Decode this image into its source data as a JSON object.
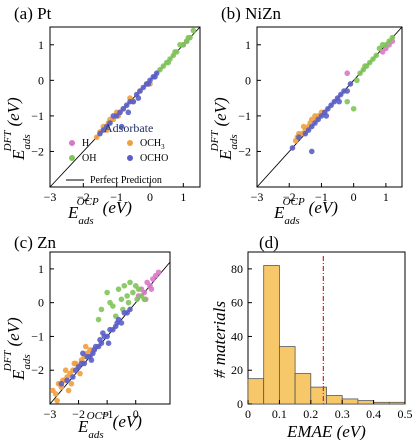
{
  "colors": {
    "H": "#d977c7",
    "OCH3": "#f0a03c",
    "OH": "#7fc45a",
    "OCHO": "#5a5ec8",
    "bar": "#f7c86a",
    "vline": "#e02020"
  },
  "chart_data": [
    {
      "type": "scatter",
      "title": "(a) Pt",
      "xlabel": "E_ads^OCP (eV)",
      "ylabel": "E_ads^DFT (eV)",
      "xlim": [
        -3,
        1.5
      ],
      "ylim": [
        -3,
        1.5
      ],
      "xticks": [
        -3,
        -2,
        -1,
        0,
        1
      ],
      "yticks": [
        -2,
        -1,
        0,
        1
      ],
      "show_xticklabels": true,
      "series": [
        {
          "name": "H",
          "x": [
            1.0,
            1.1
          ],
          "y": [
            1.0,
            1.1
          ]
        },
        {
          "name": "OCH3",
          "x": [
            -1.6,
            -1.4,
            -1.3,
            -1.2,
            -1.1,
            -1.0,
            -0.9,
            -0.8,
            -0.6,
            -0.5,
            -0.3,
            -0.1,
            0.0,
            -1.5,
            -1.25,
            -0.95
          ],
          "y": [
            -1.6,
            -1.3,
            -1.4,
            -1.1,
            -1.1,
            -0.9,
            -0.9,
            -0.8,
            -0.5,
            -0.6,
            -0.3,
            -0.1,
            -0.1,
            -1.45,
            -1.2,
            -1.0
          ]
        },
        {
          "name": "OH",
          "x": [
            0.4,
            0.5,
            0.6,
            0.7,
            0.8,
            0.9,
            1.0,
            1.1,
            1.2,
            1.3,
            0.3,
            0.55,
            0.75,
            1.15
          ],
          "y": [
            0.4,
            0.5,
            0.6,
            0.7,
            0.8,
            1.0,
            1.0,
            1.1,
            1.2,
            1.4,
            0.3,
            0.5,
            0.8,
            1.2
          ]
        },
        {
          "name": "OCHO",
          "x": [
            -1.5,
            -1.4,
            -1.3,
            -1.2,
            -1.1,
            -1.0,
            -0.9,
            -0.8,
            -0.7,
            -0.6,
            -0.5,
            -0.4,
            -0.3,
            -0.2,
            -0.1,
            0.0,
            0.1,
            0.2,
            -0.85,
            -0.65,
            -0.35,
            -0.05,
            0.15
          ],
          "y": [
            -1.5,
            -1.4,
            -1.3,
            -1.2,
            -1.0,
            -1.0,
            -0.9,
            -0.8,
            -0.7,
            -0.6,
            -0.6,
            -0.4,
            -0.3,
            -0.2,
            -0.1,
            0.0,
            0.1,
            0.2,
            -1.3,
            -0.9,
            -0.5,
            -0.1,
            0.1
          ]
        }
      ]
    },
    {
      "type": "scatter",
      "title": "(b) NiZn",
      "xlabel": "",
      "ylabel": "E_ads^DFT (eV)",
      "xlim": [
        -3,
        1.5
      ],
      "ylim": [
        -3,
        1.5
      ],
      "xticks": [
        -3,
        -2,
        -1,
        0,
        1
      ],
      "yticks": [
        -2,
        -1,
        0,
        1
      ],
      "show_xticklabels": true,
      "series": [
        {
          "name": "H",
          "x": [
            0.9,
            1.0,
            1.1,
            1.2,
            -0.2
          ],
          "y": [
            0.8,
            0.9,
            1.0,
            1.1,
            0.2
          ]
        },
        {
          "name": "OCH3",
          "x": [
            -1.8,
            -1.7,
            -1.6,
            -1.5,
            -1.4,
            -1.3,
            -1.2,
            -1.1,
            -1.0,
            -0.9,
            -1.75,
            -1.55,
            -1.35,
            -1.15
          ],
          "y": [
            -1.7,
            -1.5,
            -1.5,
            -1.4,
            -1.3,
            -1.1,
            -1.0,
            -1.0,
            -0.9,
            -0.9,
            -1.6,
            -1.3,
            -1.2,
            -1.1
          ]
        },
        {
          "name": "OH",
          "x": [
            0.2,
            0.3,
            0.4,
            0.5,
            0.6,
            0.7,
            0.8,
            0.9,
            1.0,
            1.1,
            1.2,
            0.0,
            0.1,
            -0.2,
            0.35
          ],
          "y": [
            0.2,
            0.3,
            0.4,
            0.5,
            0.6,
            0.7,
            0.9,
            1.0,
            1.0,
            1.1,
            1.2,
            -0.8,
            0.0,
            -0.6,
            0.4
          ]
        },
        {
          "name": "OCHO",
          "x": [
            -1.9,
            -1.7,
            -1.5,
            -1.4,
            -1.3,
            -1.2,
            -1.1,
            -1.0,
            -0.9,
            -0.8,
            -0.7,
            -0.6,
            -0.5,
            -0.4,
            -0.3,
            -0.2,
            -0.1,
            -1.3,
            -0.85,
            -0.45
          ],
          "y": [
            -1.9,
            -1.6,
            -1.5,
            -1.4,
            -1.3,
            -1.2,
            -1.1,
            -1.0,
            -0.9,
            -0.8,
            -0.7,
            -0.6,
            -0.5,
            -0.4,
            -0.3,
            -0.3,
            -0.1,
            -2.0,
            -1.0,
            -0.6
          ]
        }
      ]
    },
    {
      "type": "scatter",
      "title": "(c) Zn",
      "xlabel": "E_ads^OCP (eV)",
      "ylabel": "E_ads^DFT (eV)",
      "xlim": [
        -3,
        1.2
      ],
      "ylim": [
        -3,
        1.5
      ],
      "xticks": [
        -3,
        -2,
        -1,
        0
      ],
      "yticks": [
        -2,
        -1,
        0,
        1
      ],
      "show_xticklabels": true,
      "series": [
        {
          "name": "H",
          "x": [
            0.1,
            0.2,
            0.3,
            0.4,
            0.5,
            0.6,
            0.7,
            0.8,
            0.35,
            0.55
          ],
          "y": [
            0.2,
            0.4,
            0.3,
            0.6,
            0.5,
            0.7,
            0.8,
            0.9,
            0.1,
            0.4
          ]
        },
        {
          "name": "OCH3",
          "x": [
            -2.9,
            -2.8,
            -2.7,
            -2.6,
            -2.5,
            -2.4,
            -2.3,
            -2.2,
            -2.1,
            -2.0,
            -1.9,
            -1.8,
            -1.7,
            -1.6,
            -1.5,
            -2.75,
            -2.55,
            -2.35,
            -2.15,
            -1.95,
            -1.75,
            -2.45,
            -2.25
          ],
          "y": [
            -2.6,
            -2.7,
            -2.4,
            -2.5,
            -2.3,
            -2.2,
            -2.1,
            -2.0,
            -1.8,
            -1.9,
            -1.7,
            -1.6,
            -1.5,
            -1.4,
            -1.4,
            -2.9,
            -2.3,
            -2.6,
            -1.8,
            -2.1,
            -1.3,
            -2.0,
            -2.4
          ]
        },
        {
          "name": "OH",
          "x": [
            -1.2,
            -1.0,
            -0.8,
            -0.6,
            -0.5,
            -0.4,
            -0.3,
            -0.2,
            -0.1,
            0.0,
            0.1,
            0.2,
            0.3,
            -0.9,
            -0.7,
            -0.45,
            -0.25,
            0.05,
            -1.3
          ],
          "y": [
            -0.2,
            0.3,
            -0.1,
            0.4,
            0.1,
            0.5,
            0.2,
            0.6,
            0.3,
            0.5,
            0.4,
            0.2,
            0.1,
            0.0,
            -0.4,
            -0.2,
            0.0,
            0.1,
            -0.5
          ]
        },
        {
          "name": "OCHO",
          "x": [
            -2.6,
            -2.4,
            -2.2,
            -2.0,
            -1.9,
            -1.8,
            -1.7,
            -1.6,
            -1.5,
            -1.4,
            -1.3,
            -1.2,
            -1.1,
            -1.0,
            -0.9,
            -0.8,
            -0.7,
            -0.6,
            -0.5,
            -0.4,
            -0.3,
            -0.2,
            -1.85,
            -1.55,
            -1.25,
            -0.95,
            -0.65,
            -1.45,
            -2.1,
            -1.15
          ],
          "y": [
            -2.4,
            -2.3,
            -2.2,
            -1.9,
            -1.8,
            -1.8,
            -1.6,
            -1.6,
            -1.5,
            -1.3,
            -1.3,
            -1.2,
            -1.0,
            -1.0,
            -0.8,
            -0.8,
            -0.7,
            -0.5,
            -0.6,
            -0.3,
            -0.3,
            -0.2,
            -1.5,
            -1.7,
            -1.1,
            -1.2,
            -0.6,
            -1.4,
            -2.0,
            -0.9
          ]
        }
      ]
    },
    {
      "type": "bar",
      "title": "(d)",
      "xlabel": "EMAE (eV)",
      "ylabel": "# materials",
      "bin_edges": [
        0.0,
        0.05,
        0.1,
        0.15,
        0.2,
        0.25,
        0.3,
        0.35,
        0.4,
        0.45,
        0.5
      ],
      "values": [
        15,
        82,
        34,
        18,
        10,
        5,
        3,
        2,
        1,
        1
      ],
      "xlim": [
        0,
        0.5
      ],
      "ylim": [
        0,
        90
      ],
      "xticks": [
        0,
        0.1,
        0.2,
        0.3,
        0.4,
        0.5
      ],
      "yticks": [
        0,
        20,
        40,
        60,
        80
      ],
      "vline_x": 0.24
    }
  ],
  "legend": {
    "title": "Adsorbate",
    "items": [
      {
        "key": "H",
        "label": "H"
      },
      {
        "key": "OCH3",
        "label": "OCH",
        "sub": "3"
      },
      {
        "key": "OH",
        "label": "OH"
      },
      {
        "key": "OCHO",
        "label": "OCHO"
      }
    ],
    "line_label": "Perfect Prediction"
  }
}
